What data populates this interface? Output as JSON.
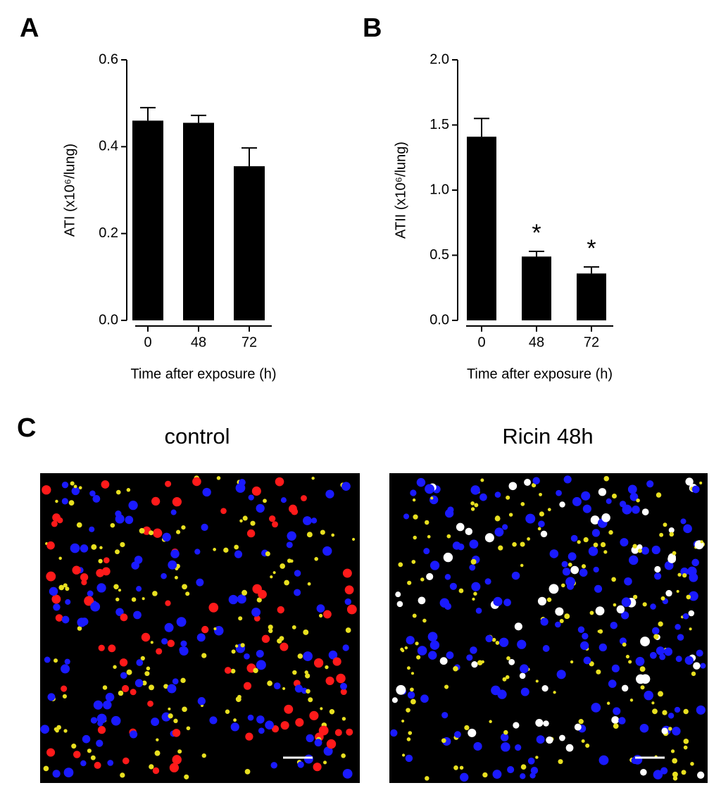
{
  "chart_data": [
    {
      "type": "bar",
      "label": "A",
      "ylabel": "ATI (x10⁶/lung)",
      "xlabel": "Time after exposure (h)",
      "categories": [
        "0",
        "48",
        "72"
      ],
      "values": [
        0.46,
        0.455,
        0.355
      ],
      "errors": [
        0.03,
        0.017,
        0.042
      ],
      "color": "#000000",
      "ylim": [
        0,
        0.6
      ],
      "yticks": [
        {
          "value": 0,
          "label": "0.0"
        },
        0.2,
        0.4,
        0.6
      ]
    },
    {
      "type": "bar",
      "label": "B",
      "ylabel": "ATII (x10⁶/lung)",
      "xlabel": "Time after exposure (h)",
      "categories": [
        "0",
        "48",
        "72"
      ],
      "values": [
        1.41,
        0.49,
        0.36
      ],
      "errors": [
        0.14,
        0.04,
        0.05
      ],
      "significance": [
        null,
        "*",
        "*"
      ],
      "color": "#000000",
      "ylim": [
        0,
        2.0
      ],
      "yticks": [
        {
          "value": 0,
          "label": "0.0"
        },
        0.5,
        {
          "value": 1,
          "label": "1.0"
        },
        1.5,
        {
          "value": 2,
          "label": "2.0"
        }
      ]
    }
  ],
  "panel_c": {
    "label": "C",
    "images": [
      "control",
      "Ricin 48h"
    ]
  }
}
